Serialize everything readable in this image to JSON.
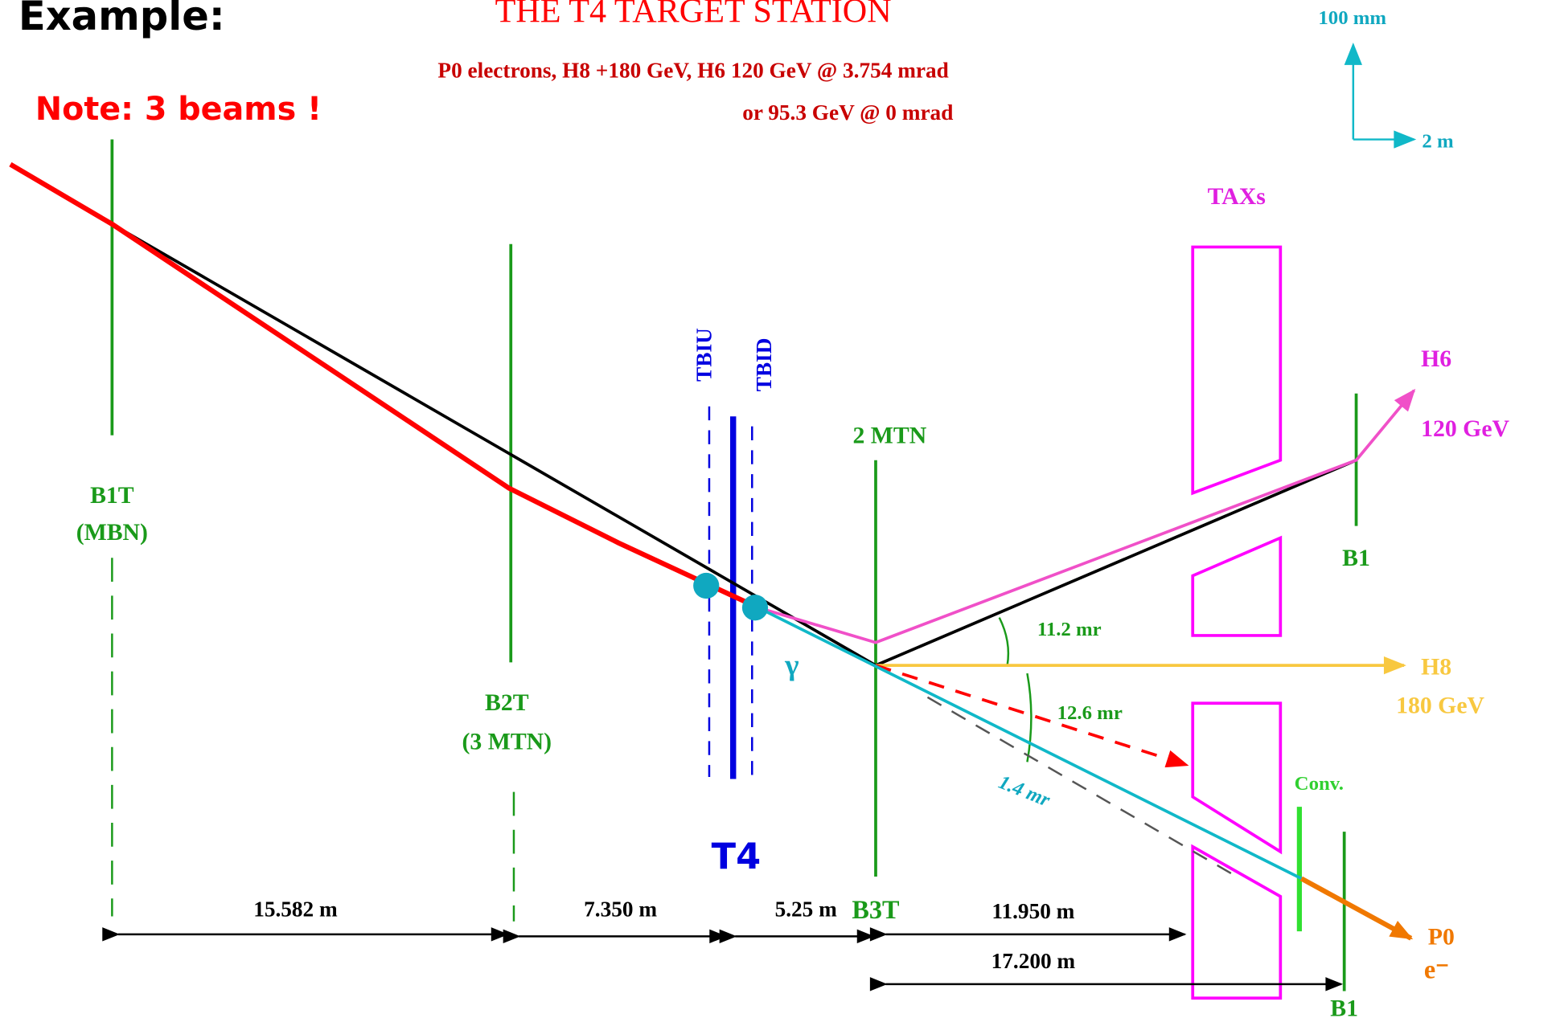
{
  "header": {
    "example": "Example:",
    "title": "THE T4 TARGET STATION",
    "subtitle": "P0 electrons, H8 +180 GeV, H6 120 GeV @ 3.754 mrad",
    "subtitle2": "or 95.3 GeV @ 0 mrad",
    "note": "Note: 3 beams !"
  },
  "scale": {
    "vertical": "100 mm",
    "horizontal": "2 m"
  },
  "elements": {
    "taxs": "TAXs",
    "tbiu": "TBIU",
    "tbid": "TBID",
    "t4": "T4",
    "mtn2": "2 MTN",
    "b1t": "B1T",
    "b1t_sub": "(MBN)",
    "b2t": "B2T",
    "b2t_sub": "(3 MTN)",
    "b3t": "B3T",
    "b1_top": "B1",
    "b1_bottom": "B1",
    "conv": "Conv.",
    "gamma": "γ"
  },
  "beams": {
    "h6": "H6",
    "h6_energy": "120 GeV",
    "h8": "H8",
    "h8_energy": "180 GeV",
    "p0": "P0",
    "p0_particle": "e⁻"
  },
  "angles": {
    "a1": "11.2 mr",
    "a2": "12.6 mr",
    "a3": "1.4 mr"
  },
  "distances": {
    "d1": "15.582 m",
    "d2": "7.350 m",
    "d3": "5.25 m",
    "d4": "11.950 m",
    "d5": "17.200 m"
  }
}
